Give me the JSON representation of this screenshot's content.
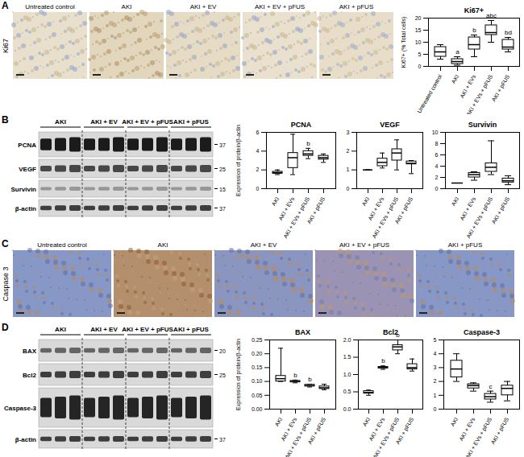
{
  "figure": {
    "panels": [
      {
        "label": "A",
        "row_label": "Ki67",
        "images": [
          "Untreated control",
          "AKI",
          "AKI + EV",
          "AKI + EV + pFUS",
          "AKI + pFUS"
        ]
      },
      {
        "label": "B",
        "blot": {
          "groups": [
            "AKI",
            "AKI + EV",
            "AKI + EV + pFUS",
            "AKI + pFUS"
          ],
          "rows": [
            {
              "name": "PCNA",
              "mw": 37
            },
            {
              "name": "VEGF",
              "mw": 25
            },
            {
              "name": "Survivin",
              "mw": 15
            },
            {
              "name": "β-actin",
              "mw": 37
            }
          ]
        }
      },
      {
        "label": "C",
        "row_label": "Caspase 3",
        "images": [
          "Untreated control",
          "AKI",
          "AKI + EV",
          "AKI + EV + pFUS",
          "AKI + pFUS"
        ]
      },
      {
        "label": "D",
        "blot": {
          "groups": [
            "AKI",
            "AKI + EV",
            "AKI + EV + pFUS",
            "AKI + pFUS"
          ],
          "rows": [
            {
              "name": "BAX",
              "mw": 20
            },
            {
              "name": "Bcl2",
              "mw": 25
            },
            {
              "name": "Caspase-3"
            },
            {
              "name": "β-actin",
              "mw": 37
            }
          ]
        }
      }
    ]
  },
  "chart_data": [
    {
      "type": "box",
      "title": "Ki67+",
      "ylabel": "Ki67+ (% Total cells)",
      "categories": [
        "Untreated control",
        "AKI",
        "AKI + EVs",
        "AKI + EVs + pFUS",
        "AKI + pFUS"
      ],
      "boxes": [
        {
          "min": 3,
          "q1": 4,
          "median": 6,
          "q3": 8,
          "max": 9
        },
        {
          "min": 0.5,
          "q1": 1,
          "median": 2,
          "q3": 3,
          "max": 4
        },
        {
          "min": 4,
          "q1": 7,
          "median": 9,
          "q3": 12,
          "max": 13
        },
        {
          "min": 10,
          "q1": 13,
          "median": 14,
          "q3": 17,
          "max": 19
        },
        {
          "min": 6,
          "q1": 7,
          "median": 8,
          "q3": 11,
          "max": 12
        }
      ],
      "letters": [
        null,
        "a",
        "b",
        "abc",
        "bd"
      ],
      "ylim": [
        0,
        20
      ],
      "yticks": [
        0,
        5,
        10,
        15,
        20
      ]
    },
    {
      "type": "box",
      "title": "PCNA",
      "ylabel": "Expression of protein/β-actin",
      "categories": [
        "AKI",
        "AKI + EVs",
        "AKI + EVs + pFUS",
        "AKI + pFUS"
      ],
      "boxes": [
        {
          "min": 1.5,
          "q1": 1.6,
          "median": 1.7,
          "q3": 1.8,
          "max": 2.0
        },
        {
          "min": 1.5,
          "q1": 2.2,
          "median": 3.3,
          "q3": 3.8,
          "max": 5.8
        },
        {
          "min": 3.2,
          "q1": 3.5,
          "median": 3.7,
          "q3": 4.0,
          "max": 4.3
        },
        {
          "min": 2.8,
          "q1": 3.1,
          "median": 3.3,
          "q3": 3.5,
          "max": 3.7
        }
      ],
      "letters": [
        null,
        null,
        "b",
        null
      ],
      "ylim": [
        0,
        6
      ],
      "yticks": [
        0,
        2,
        4,
        6
      ]
    },
    {
      "type": "box",
      "title": "VEGF",
      "categories": [
        "AKI",
        "AKI + EVs",
        "AKI + EVs + pFUS",
        "AKI + pFUS"
      ],
      "boxes": [
        {
          "min": 1,
          "q1": 1,
          "median": 1,
          "q3": 1,
          "max": 1
        },
        {
          "min": 1.1,
          "q1": 1.2,
          "median": 1.4,
          "q3": 1.6,
          "max": 1.9
        },
        {
          "min": 1.0,
          "q1": 1.5,
          "median": 1.9,
          "q3": 2.1,
          "max": 2.6
        },
        {
          "min": 0.8,
          "q1": 1.3,
          "median": 1.35,
          "q3": 1.45,
          "max": 1.5
        }
      ],
      "ylim": [
        0,
        3
      ],
      "yticks": [
        0,
        1,
        2,
        3
      ]
    },
    {
      "type": "box",
      "title": "Survivin",
      "categories": [
        "AKI",
        "AKI + EVs",
        "AKI + EVs + pFUS",
        "AKI + pFUS"
      ],
      "boxes": [
        {
          "min": 1,
          "q1": 1,
          "median": 1,
          "q3": 1,
          "max": 1
        },
        {
          "min": 1.5,
          "q1": 2.0,
          "median": 2.5,
          "q3": 2.8,
          "max": 3.0
        },
        {
          "min": 2.5,
          "q1": 3.0,
          "median": 3.8,
          "q3": 4.5,
          "max": 8.5
        },
        {
          "min": 0.7,
          "q1": 1.1,
          "median": 1.4,
          "q3": 1.8,
          "max": 2.3
        }
      ],
      "ylim": [
        0,
        10
      ],
      "yticks": [
        0,
        2,
        4,
        6,
        8,
        10
      ]
    },
    {
      "type": "box",
      "title": "BAX",
      "ylabel": "Expression of protein/β-actin",
      "categories": [
        "AKI",
        "AKI + EVs",
        "AKI + EVs + pFUS",
        "AKI + pFUS"
      ],
      "boxes": [
        {
          "min": 0.1,
          "q1": 0.1,
          "median": 0.11,
          "q3": 0.12,
          "max": 0.22
        },
        {
          "min": 0.095,
          "q1": 0.097,
          "median": 0.1,
          "q3": 0.102,
          "max": 0.105
        },
        {
          "min": 0.08,
          "q1": 0.082,
          "median": 0.085,
          "q3": 0.088,
          "max": 0.09
        },
        {
          "min": 0.07,
          "q1": 0.073,
          "median": 0.077,
          "q3": 0.082,
          "max": 0.09
        }
      ],
      "letters": [
        null,
        "b",
        "b",
        null
      ],
      "ylim": [
        0,
        0.25
      ],
      "yticks": [
        {
          "value": 0,
          "label": "0.00"
        },
        {
          "value": 0.05,
          "label": "0.05"
        },
        {
          "value": 0.1,
          "label": "0.10"
        },
        {
          "value": 0.15,
          "label": "0.15"
        },
        {
          "value": 0.2,
          "label": "0.20"
        },
        {
          "value": 0.25,
          "label": "0.25"
        }
      ]
    },
    {
      "type": "box",
      "title": "Bcl2",
      "categories": [
        "AKI",
        "AKI + EVs",
        "AKI + EVs + pFUS",
        "AKI + pFUS"
      ],
      "boxes": [
        {
          "min": 0.4,
          "q1": 0.45,
          "median": 0.48,
          "q3": 0.52,
          "max": 0.55
        },
        {
          "min": 1.15,
          "q1": 1.18,
          "median": 1.2,
          "q3": 1.22,
          "max": 1.25
        },
        {
          "min": 1.6,
          "q1": 1.7,
          "median": 1.8,
          "q3": 1.85,
          "max": 2.0
        },
        {
          "min": 1.1,
          "q1": 1.15,
          "median": 1.2,
          "q3": 1.3,
          "max": 1.45
        }
      ],
      "letters": [
        null,
        "b",
        "b",
        null
      ],
      "ylim": [
        0,
        2
      ],
      "yticks": [
        {
          "value": 0,
          "label": "0.0"
        },
        {
          "value": 0.5,
          "label": "0.5"
        },
        {
          "value": 1,
          "label": "1.0"
        },
        {
          "value": 1.5,
          "label": "1.5"
        },
        {
          "value": 2,
          "label": "2.0"
        }
      ]
    },
    {
      "type": "box",
      "title": "Caspase-3",
      "categories": [
        "AKI",
        "AKI + EVs",
        "AKI + EVs + pFUS",
        "AKI + pFUS"
      ],
      "boxes": [
        {
          "min": 2.0,
          "q1": 2.3,
          "median": 2.9,
          "q3": 3.5,
          "max": 4.0
        },
        {
          "min": 1.3,
          "q1": 1.5,
          "median": 1.7,
          "q3": 1.8,
          "max": 1.9
        },
        {
          "min": 0.5,
          "q1": 0.7,
          "median": 0.9,
          "q3": 1.1,
          "max": 1.3
        },
        {
          "min": 0.6,
          "q1": 1.0,
          "median": 1.5,
          "q3": 1.7,
          "max": 2.0
        }
      ],
      "letters": [
        null,
        null,
        "c",
        null
      ],
      "ylim": [
        0,
        5
      ],
      "yticks": [
        0,
        1,
        2,
        3,
        4,
        5
      ]
    }
  ]
}
